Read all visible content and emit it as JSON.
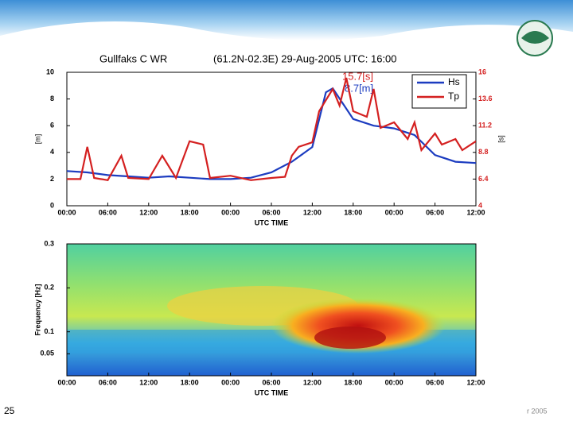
{
  "page_number": "25",
  "footer": "r 2005",
  "chart_data": [
    {
      "type": "line",
      "title": "Gullfaks C WR",
      "subtitle": "(61.2N-02.3E) 29-Aug-2005 UTC: 16:00",
      "annotations": [
        {
          "text": "15.7[s]",
          "color": "#d42020"
        },
        {
          "text": "8.7[m]",
          "color": "#1c3cc0"
        }
      ],
      "xlabel": "UTC TIME",
      "ylabel": "[m]",
      "y2label": "[s]",
      "xlim": [
        0,
        60
      ],
      "xticks": [
        {
          "value": 0,
          "label": "00:00"
        },
        {
          "value": 6,
          "label": "06:00"
        },
        {
          "value": 12,
          "label": "12:00"
        },
        {
          "value": 18,
          "label": "18:00"
        },
        {
          "value": 24,
          "label": "00:00"
        },
        {
          "value": 30,
          "label": "06:00"
        },
        {
          "value": 36,
          "label": "12:00"
        },
        {
          "value": 42,
          "label": "18:00"
        },
        {
          "value": 48,
          "label": "00:00"
        },
        {
          "value": 54,
          "label": "06:00"
        },
        {
          "value": 60,
          "label": "12:00"
        }
      ],
      "ylim": [
        0,
        10
      ],
      "yticks": [
        0,
        2,
        4,
        6,
        8,
        10
      ],
      "y2lim": [
        4,
        16
      ],
      "y2ticks": [
        4,
        6.4,
        8.8,
        11.2,
        13.6,
        16
      ],
      "legend": "upper right",
      "series": [
        {
          "name": "Hs",
          "color": "#1c3cc0",
          "x": [
            0,
            3,
            6,
            9,
            12,
            15,
            18,
            21,
            24,
            27,
            30,
            33,
            36,
            38,
            39,
            42,
            45,
            48,
            51,
            54,
            57,
            60
          ],
          "values": [
            2.6,
            2.5,
            2.3,
            2.2,
            2.1,
            2.2,
            2.1,
            2.0,
            2.0,
            2.1,
            2.5,
            3.3,
            4.4,
            8.5,
            8.8,
            6.5,
            6.0,
            5.8,
            5.3,
            3.8,
            3.3,
            3.2
          ]
        },
        {
          "name": "Tp",
          "color": "#d42020",
          "axis": "y2",
          "x": [
            0,
            2,
            3,
            4,
            6,
            8,
            9,
            12,
            14,
            16,
            18,
            20,
            21,
            24,
            27,
            30,
            32,
            33,
            34,
            36,
            37,
            39,
            40,
            41,
            42,
            44,
            45,
            46,
            48,
            50,
            51,
            52,
            54,
            55,
            57,
            58,
            60
          ],
          "values": [
            6.4,
            6.4,
            9.3,
            6.5,
            6.3,
            8.5,
            6.5,
            6.4,
            8.5,
            6.5,
            9.8,
            9.5,
            6.5,
            6.7,
            6.3,
            6.5,
            6.6,
            8.5,
            9.3,
            9.7,
            12.5,
            14.5,
            13.0,
            15.5,
            12.5,
            12.0,
            14.5,
            11.0,
            11.5,
            10.0,
            11.5,
            9.0,
            10.5,
            9.5,
            10.0,
            9.0,
            9.8
          ]
        }
      ]
    },
    {
      "type": "contour",
      "xlabel": "UTC TIME",
      "ylabel": "Frequency [Hz]",
      "xlim": [
        0,
        60
      ],
      "xticks": [
        {
          "value": 0,
          "label": "00:00"
        },
        {
          "value": 6,
          "label": "06:00"
        },
        {
          "value": 12,
          "label": "12:00"
        },
        {
          "value": 18,
          "label": "18:00"
        },
        {
          "value": 24,
          "label": "00:00"
        },
        {
          "value": 30,
          "label": "06:00"
        },
        {
          "value": 36,
          "label": "12:00"
        },
        {
          "value": 42,
          "label": "18:00"
        },
        {
          "value": 48,
          "label": "00:00"
        },
        {
          "value": 54,
          "label": "06:00"
        },
        {
          "value": 60,
          "label": "12:00"
        }
      ],
      "ylim": [
        0,
        0.3
      ],
      "yticks": [
        0.05,
        0.1,
        0.2,
        0.3
      ]
    }
  ]
}
